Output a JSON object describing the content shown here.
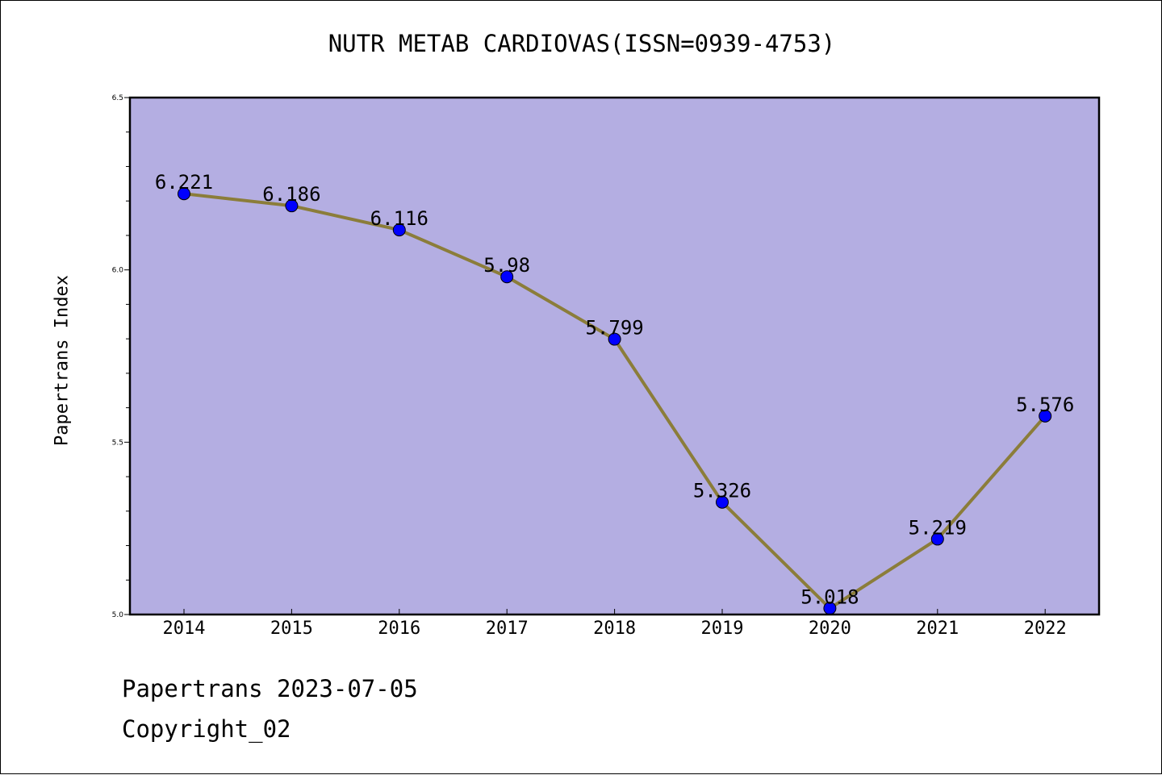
{
  "chart_data": {
    "type": "line",
    "title": "NUTR METAB CARDIOVAS(ISSN=0939-4753)",
    "xlabel": "",
    "ylabel": "Papertrans Index",
    "categories": [
      "2014",
      "2015",
      "2016",
      "2017",
      "2018",
      "2019",
      "2020",
      "2021",
      "2022"
    ],
    "series": [
      {
        "values": [
          6.221,
          6.186,
          6.116,
          5.98,
          5.799,
          5.326,
          5.018,
          5.219,
          5.576
        ],
        "labels": [
          "6.221",
          "6.186",
          "6.116",
          "5.98",
          "5.799",
          "5.326",
          "5.018",
          "5.219",
          "5.576"
        ],
        "line_color": "#8B7D3A",
        "marker_color": "#0000FF"
      }
    ],
    "ylim": [
      5.0,
      6.5
    ],
    "yticks": [
      "5.0",
      "5.5",
      "6.0",
      "6.5"
    ],
    "plot_background": "#B4AEE2",
    "grid": false
  },
  "footer": {
    "line1": "Papertrans 2023-07-05",
    "line2": "Copyright_02"
  }
}
